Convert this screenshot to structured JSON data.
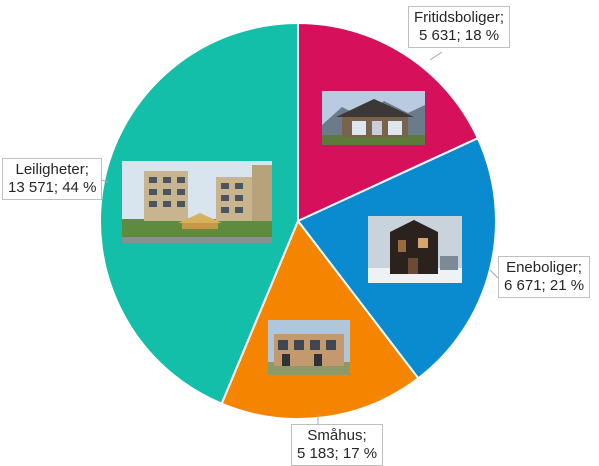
{
  "chart_data": {
    "type": "pie",
    "title": "",
    "slices": [
      {
        "name": "Fritidsboliger",
        "value": 5631,
        "percent": 18,
        "color": "#d6105a",
        "label_line1": "Fritidsboliger;",
        "label_line2": "5 631; 18 %",
        "picture": "cabin-photo"
      },
      {
        "name": "Eneboliger",
        "value": 6671,
        "percent": 21,
        "color": "#0a8bd0",
        "label_line1": "Eneboliger;",
        "label_line2": "6 671; 21 %",
        "picture": "modern-house-photo"
      },
      {
        "name": "Småhus",
        "value": 5183,
        "percent": 17,
        "color": "#f58400",
        "label_line1": "Småhus;",
        "label_line2": "5 183; 17 %",
        "picture": "row-houses-photo"
      },
      {
        "name": "Leiligheter",
        "value": 13571,
        "percent": 44,
        "color": "#14bfa9",
        "label_line1": "Leiligheter;",
        "label_line2": "13 571; 44 %",
        "picture": "apartment-blocks-photo"
      }
    ]
  }
}
